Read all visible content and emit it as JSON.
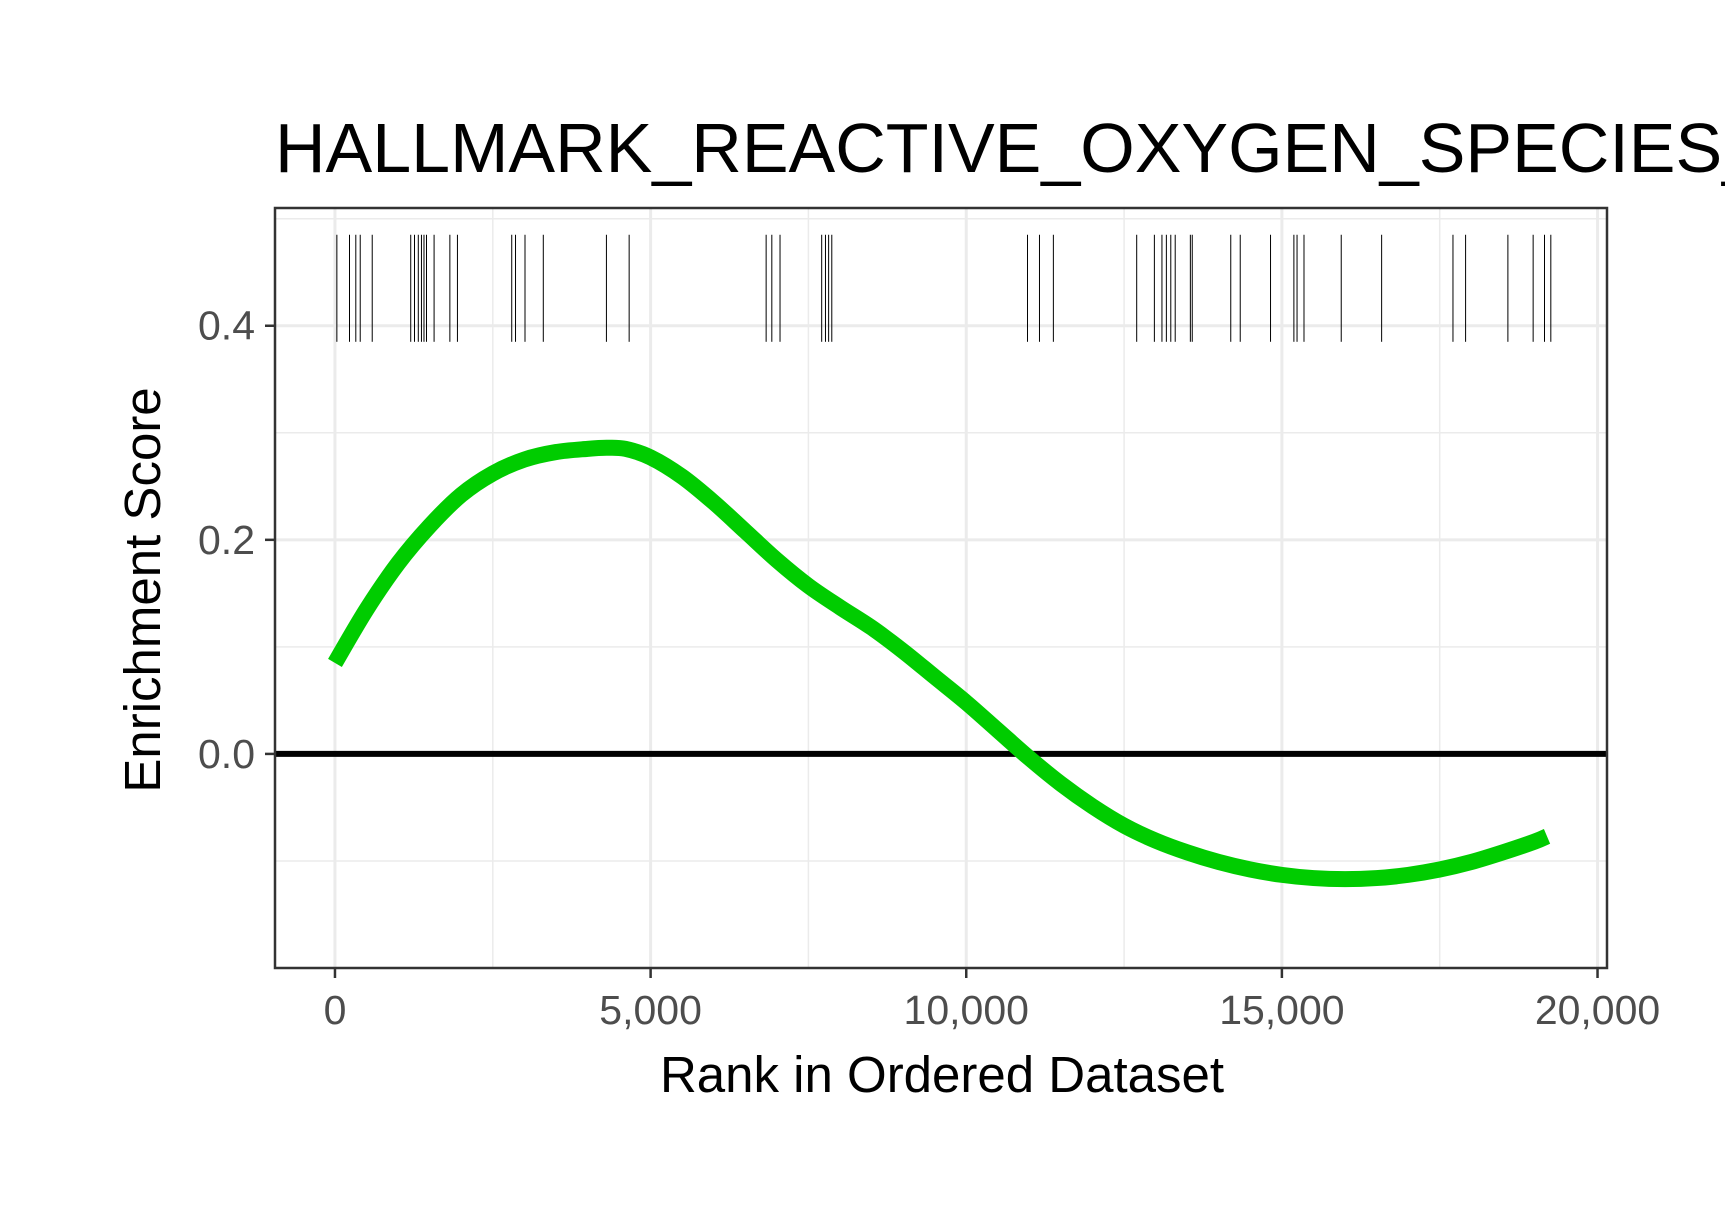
{
  "chart_data": {
    "type": "line",
    "title": "HALLMARK_REACTIVE_OXYGEN_SPECIES_PATHWAY",
    "xlabel": "Rank in Ordered Dataset",
    "ylabel": "Enrichment Score",
    "xlim": [
      -950,
      20150
    ],
    "ylim": [
      -0.2,
      0.51
    ],
    "x_ticks": [
      0,
      5000,
      10000,
      15000,
      20000
    ],
    "x_tick_labels": [
      "0",
      "5,000",
      "10,000",
      "15,000",
      "20,000"
    ],
    "y_ticks": [
      0.0,
      0.2,
      0.4
    ],
    "y_tick_labels": [
      "0.0",
      "0.2",
      "0.4"
    ],
    "grid": true,
    "legend": "none",
    "hline": 0.0,
    "colors": {
      "curve": "#00cc00",
      "hline": "#000000",
      "hits": "#000000",
      "grid": "#ebebeb",
      "panel_border": "#333333"
    },
    "series": [
      {
        "x": [
          0,
          500,
          1000,
          1500,
          2000,
          2500,
          3000,
          3500,
          4000,
          4300,
          4600,
          5000,
          5500,
          6000,
          6500,
          7000,
          7500,
          8000,
          8500,
          9000,
          9500,
          10000,
          10500,
          11000,
          11500,
          12000,
          12500,
          13000,
          13500,
          14000,
          14500,
          15000,
          15500,
          16000,
          16500,
          17000,
          17500,
          18000,
          18500,
          19000,
          19200
        ],
        "values": [
          0.085,
          0.135,
          0.178,
          0.213,
          0.242,
          0.262,
          0.275,
          0.282,
          0.285,
          0.286,
          0.285,
          0.277,
          0.259,
          0.235,
          0.208,
          0.181,
          0.157,
          0.137,
          0.118,
          0.096,
          0.072,
          0.048,
          0.022,
          -0.004,
          -0.028,
          -0.049,
          -0.067,
          -0.081,
          -0.092,
          -0.101,
          -0.108,
          -0.113,
          -0.116,
          -0.117,
          -0.116,
          -0.113,
          -0.108,
          -0.101,
          -0.092,
          -0.082,
          -0.077
        ]
      }
    ],
    "hits": [
      30,
      230,
      330,
      400,
      590,
      1200,
      1260,
      1320,
      1370,
      1410,
      1450,
      1570,
      1820,
      1940,
      2800,
      2860,
      3010,
      3300,
      4300,
      4660,
      6830,
      6920,
      7050,
      7710,
      7770,
      7820,
      7870,
      10970,
      11160,
      11380,
      12700,
      12980,
      13100,
      13170,
      13240,
      13310,
      13550,
      13580,
      14190,
      14340,
      14820,
      15190,
      15240,
      15350,
      15940,
      16580,
      17710,
      17910,
      18580,
      18980,
      19160,
      19260
    ],
    "hits_y_range": [
      0.385,
      0.485
    ]
  }
}
